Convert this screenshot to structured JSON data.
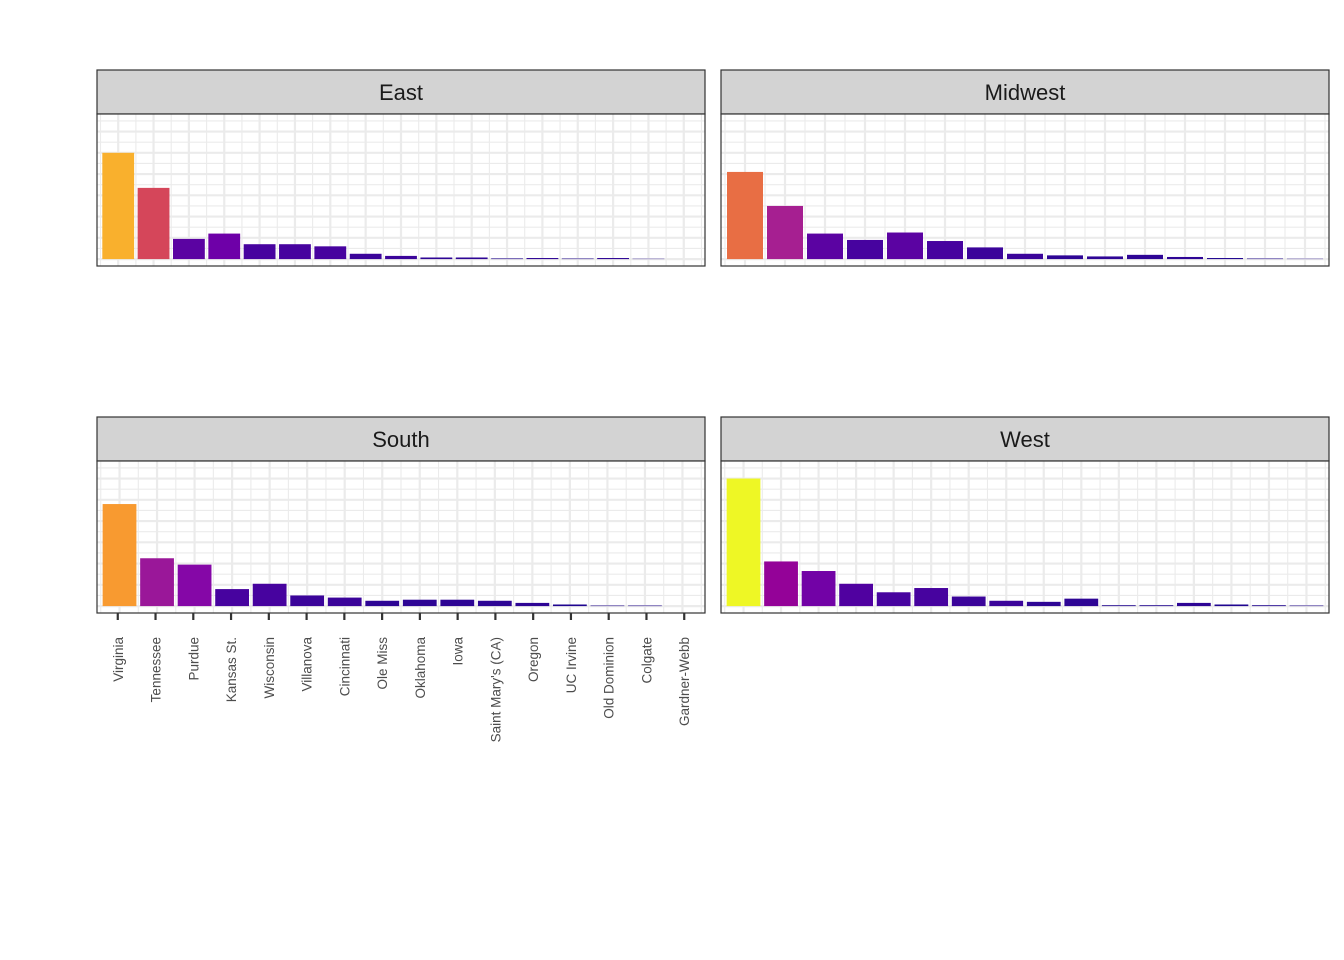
{
  "chart_data": {
    "type": "bar",
    "layout": "facet-grid",
    "title": "",
    "xlabel": "",
    "ylabel": "",
    "y_ticks_visible": false,
    "grid": true,
    "legend": "none",
    "x_tick_labels": [
      "Virginia",
      "Tennessee",
      "Purdue",
      "Kansas St.",
      "Wisconsin",
      "Villanova",
      "Cincinnati",
      "Ole Miss",
      "Oklahoma",
      "Iowa",
      "Saint Mary's (CA)",
      "Oregon",
      "UC Irvine",
      "Old Dominion",
      "Colgate",
      "Gardner-Webb"
    ],
    "ylim": [
      0,
      130
    ],
    "panels": [
      {
        "name": "East",
        "values": [
          100,
          67,
          19,
          24,
          14,
          14,
          12,
          5,
          3,
          1.5,
          1.5,
          0.6,
          1,
          0.5,
          1,
          0.3,
          0
        ],
        "colors": [
          "#F9B02D",
          "#D5465A",
          "#5B03A2",
          "#6E00A8",
          "#47039F",
          "#47039F",
          "#47039F",
          "#3B049A",
          "#3B049A",
          "#2E0595",
          "#2E0595",
          "#1F0590",
          "#2E0595",
          "#1F0590",
          "#2E0595",
          "#1F0590",
          "#1F0590"
        ]
      },
      {
        "name": "Midwest",
        "values": [
          82,
          50,
          24,
          18,
          25,
          17,
          11,
          5,
          3.5,
          2.5,
          4,
          2,
          1,
          0.5,
          0.3
        ],
        "colors": [
          "#E86E44",
          "#A61F91",
          "#5B03A2",
          "#47039F",
          "#5B03A2",
          "#47039F",
          "#3B049A",
          "#3B049A",
          "#2E0595",
          "#2E0595",
          "#2E0595",
          "#2E0595",
          "#1F0590",
          "#1F0590",
          "#1F0590"
        ]
      },
      {
        "name": "South",
        "values": [
          96,
          45,
          39,
          16,
          21,
          10,
          8,
          5,
          6,
          6,
          5,
          3,
          1.5,
          0.5,
          0.5,
          0
        ],
        "colors": [
          "#F89A30",
          "#9A1799",
          "#8507A7",
          "#47039F",
          "#47039F",
          "#3B049A",
          "#3B049A",
          "#2E0595",
          "#2E0595",
          "#2E0595",
          "#2E0595",
          "#2E0595",
          "#1F0590",
          "#1F0590",
          "#1F0590",
          "#1F0590"
        ]
      },
      {
        "name": "West",
        "values": [
          120,
          42,
          33,
          21,
          13,
          17,
          9,
          5,
          4,
          7,
          0.8,
          0.8,
          3,
          1.5,
          0.8,
          0.5
        ],
        "colors": [
          "#EEF725",
          "#940298",
          "#7202A6",
          "#5001A0",
          "#47039F",
          "#47039F",
          "#3B049A",
          "#3B049A",
          "#2E0595",
          "#2E0595",
          "#1F0590",
          "#1F0590",
          "#2E0595",
          "#1F0590",
          "#1F0590",
          "#1F0590"
        ]
      }
    ]
  }
}
